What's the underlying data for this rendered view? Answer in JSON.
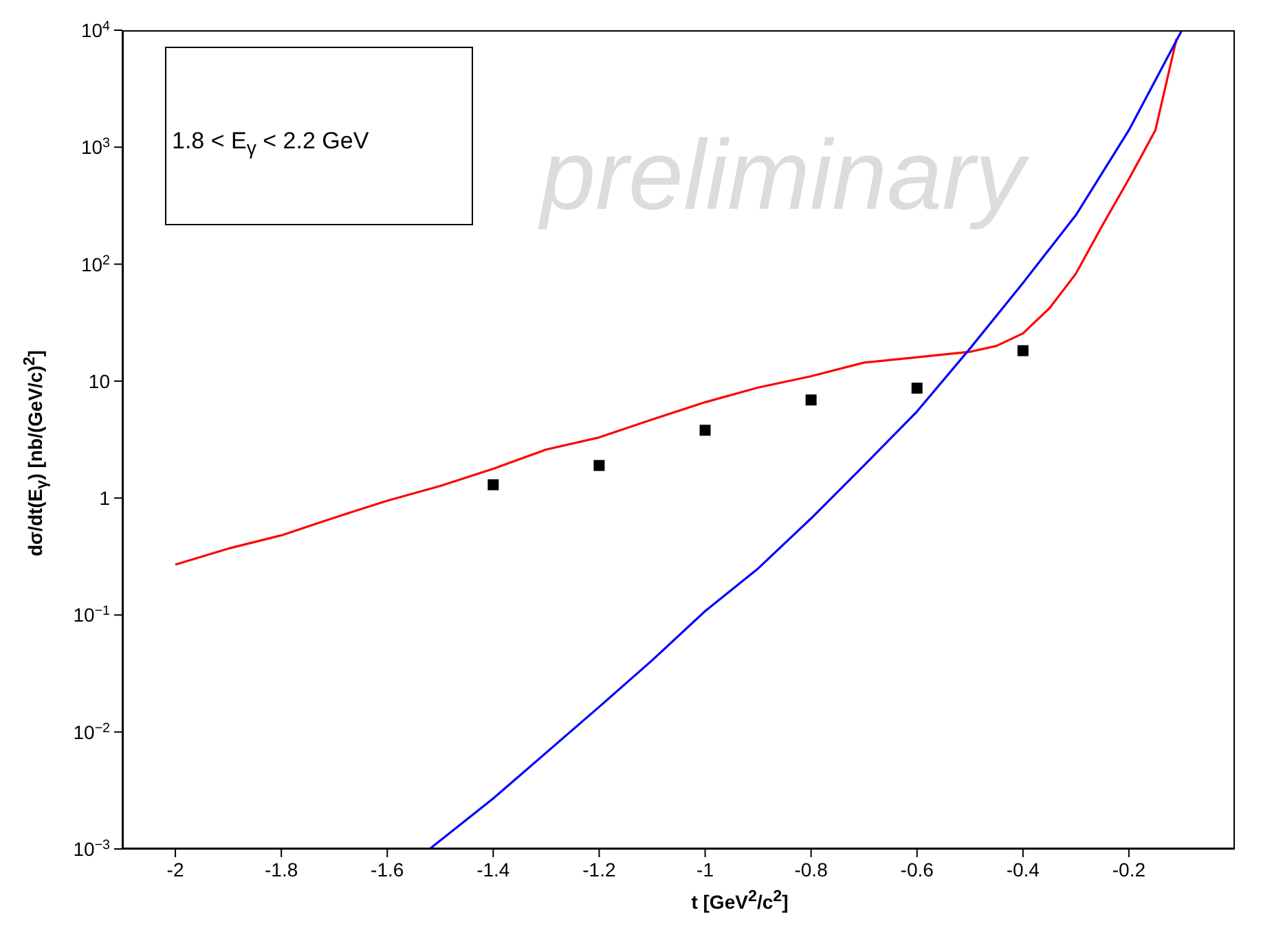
{
  "chart_data": {
    "type": "line",
    "xlabel": "t [GeV$^{2}$/c$^{2}$]",
    "ylabel": "dσ/dt(E$_{γ}$) [nb/(GeV/c)$^{2}$]",
    "log": "y",
    "grid": false,
    "legend": false,
    "xlim": [
      -2.1,
      0
    ],
    "xticks": [
      -2,
      -1.8,
      -1.6,
      -1.4,
      -1.2,
      -1,
      -0.8,
      -0.6,
      -0.4,
      -0.2
    ],
    "ylim": [
      0.001,
      10000
    ],
    "yticks": [
      {
        "value": 0.001,
        "label": "10$^{−3}$"
      },
      {
        "value": 0.01,
        "label": "10$^{−2}$"
      },
      {
        "value": 0.1,
        "label": "10$^{−1}$"
      },
      1,
      10,
      {
        "value": 100,
        "label": "10$^{2}$"
      },
      {
        "value": 1000,
        "label": "10$^{3}$"
      },
      {
        "value": 10000,
        "label": "10$^{4}$"
      }
    ],
    "annotations": [
      "1.8 < E$_{γ}$ < 2.2 GeV",
      "preliminary"
    ],
    "series": [
      {
        "color": "#ff0000",
        "marker": "none",
        "x": [
          -2,
          -1.9,
          -1.8,
          -1.7,
          -1.6,
          -1.5,
          -1.4,
          -1.3,
          -1.2,
          -1.1,
          -1.0,
          -0.9,
          -0.8,
          -0.7,
          -0.6,
          -0.5,
          -0.45,
          -0.4,
          -0.35,
          -0.3,
          -0.25,
          -0.2,
          -0.15,
          -0.11
        ],
        "values": [
          0.27,
          0.37,
          0.48,
          0.68,
          0.95,
          1.27,
          1.78,
          2.6,
          3.3,
          4.7,
          6.6,
          8.8,
          11,
          14.4,
          16,
          17.8,
          20,
          25.6,
          42,
          83,
          215,
          535,
          1400,
          8500
        ]
      },
      {
        "color": "#0000ff",
        "marker": "none",
        "x": [
          -1.52,
          -1.4,
          -1.2,
          -1.1,
          -1.0,
          -0.9,
          -0.8,
          -0.7,
          -0.6,
          -0.5,
          -0.4,
          -0.3,
          -0.2,
          -0.1
        ],
        "values": [
          0.001,
          0.0027,
          0.0164,
          0.041,
          0.108,
          0.25,
          0.67,
          1.9,
          5.5,
          19,
          69,
          263,
          1400,
          10000
        ]
      },
      {
        "type": "scatter",
        "color": "#000000",
        "marker": "square",
        "x": [
          -1.4,
          -1.2,
          -1.0,
          -0.8,
          -0.6,
          -0.4
        ],
        "values": [
          1.3,
          1.9,
          3.8,
          6.9,
          8.7,
          18.2
        ]
      }
    ]
  }
}
